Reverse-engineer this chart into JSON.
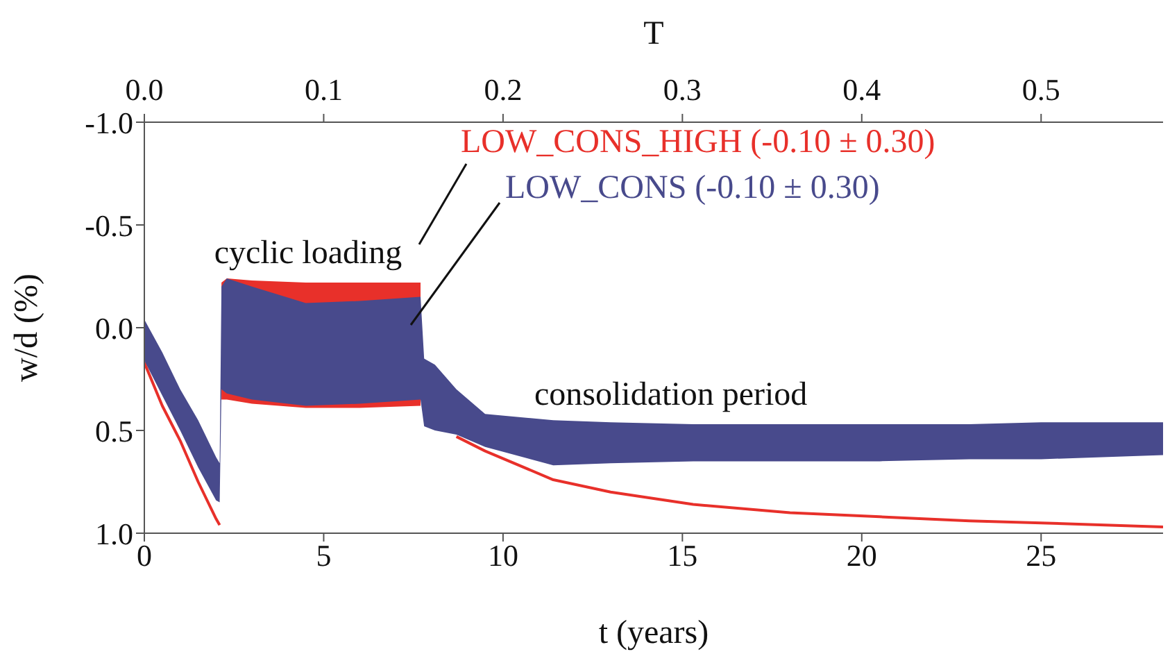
{
  "chart_data": {
    "type": "line",
    "xlabel": "t (years)",
    "ylabel": "w/d (%)",
    "x2label": "T",
    "x": [
      0,
      0.5,
      1,
      1.5,
      2,
      2.1,
      2.15,
      2.3,
      3,
      4.5,
      6,
      7.7,
      7.8,
      8.1,
      8.7,
      9.5,
      11.4,
      13,
      15.3,
      18,
      20.5,
      23,
      25,
      28.4
    ],
    "series": [
      {
        "name": "LOW_CONS_HIGH (-0.10 ± 0.30)",
        "color": "#e8302a",
        "values": [
          0.17,
          0.38,
          0.55,
          0.75,
          0.93,
          0.96,
          null,
          null,
          null,
          null,
          null,
          null,
          null,
          null,
          0.53,
          0.6,
          0.74,
          0.8,
          0.86,
          0.9,
          0.92,
          0.94,
          0.95,
          0.97
        ],
        "lower": [
          null,
          null,
          null,
          null,
          null,
          null,
          -0.22,
          -0.24,
          -0.23,
          -0.22,
          -0.22,
          -0.22,
          null,
          null,
          null,
          null,
          null,
          null,
          null,
          null,
          null,
          null,
          null,
          null
        ],
        "upper": [
          null,
          null,
          null,
          null,
          null,
          null,
          0.35,
          0.35,
          0.37,
          0.39,
          0.39,
          0.38,
          null,
          null,
          null,
          null,
          null,
          null,
          null,
          null,
          null,
          null,
          null,
          null
        ]
      },
      {
        "name": "LOW_CONS (-0.10 ± 0.30)",
        "color": "#484a8c",
        "values": [
          null,
          null,
          null,
          null,
          null,
          null,
          null,
          null,
          null,
          null,
          null,
          null,
          null,
          null,
          null,
          null,
          null,
          null,
          null,
          null,
          null,
          null,
          null,
          null
        ],
        "lower": [
          -0.04,
          0.12,
          0.3,
          0.45,
          0.63,
          0.66,
          -0.2,
          -0.24,
          -0.2,
          -0.12,
          -0.13,
          -0.15,
          0.15,
          0.18,
          0.3,
          0.42,
          0.45,
          0.46,
          0.47,
          0.47,
          0.47,
          0.47,
          0.46,
          0.46
        ],
        "upper": [
          0.16,
          0.33,
          0.5,
          0.68,
          0.84,
          0.85,
          0.3,
          0.32,
          0.35,
          0.38,
          0.37,
          0.35,
          0.48,
          0.5,
          0.52,
          0.58,
          0.67,
          0.66,
          0.65,
          0.65,
          0.65,
          0.64,
          0.64,
          0.62
        ]
      }
    ],
    "xlim": [
      0,
      28.4
    ],
    "xticks": [
      0,
      5,
      10,
      15,
      20,
      25
    ],
    "x2lim": [
      0,
      0.568
    ],
    "x2ticks": [
      {
        "value": 0,
        "label": "0.0"
      },
      0.1,
      0.2,
      0.3,
      0.4,
      0.5
    ],
    "ylim": [
      1,
      -1
    ],
    "yticks": [
      {
        "value": -1,
        "label": "-1.0"
      },
      -0.5,
      {
        "value": 0,
        "label": "0.0"
      },
      0.5,
      {
        "value": 1,
        "label": "1.0"
      }
    ],
    "annotations": [
      "cyclic loading",
      "consolidation period"
    ],
    "line_style": "solid",
    "marker": "none"
  }
}
